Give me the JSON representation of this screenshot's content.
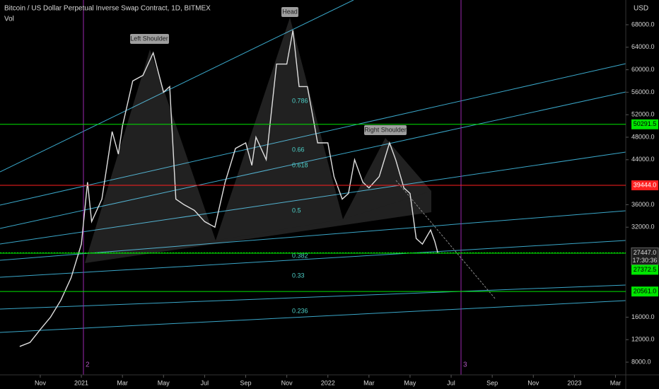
{
  "chart_data": {
    "type": "line",
    "title": "Bitcoin / US Dollar Perpetual Inverse Swap Contract, 1D, BITMEX",
    "subtitle": "Vol",
    "y_axis_label": "USD",
    "x": [
      9,
      9.5,
      10,
      10.5,
      11,
      11.5,
      12,
      12.3,
      12.5,
      13,
      13.5,
      13.8,
      14,
      14.5,
      15,
      15.5,
      16,
      16.3,
      16.6,
      17,
      17.5,
      18,
      18.5,
      19,
      19.5,
      20,
      20.3,
      20.5,
      21,
      21.5,
      22,
      22.3,
      22.6,
      23,
      23.5,
      24,
      24.3,
      24.7,
      25,
      25.3,
      25.7,
      26,
      26.5,
      27,
      27.3,
      27.7,
      28,
      28.3,
      28.6,
      29,
      29.2,
      29.35
    ],
    "values": [
      10800,
      11500,
      13800,
      16000,
      19000,
      23000,
      29000,
      40000,
      33000,
      37000,
      49000,
      45000,
      50000,
      58000,
      59000,
      63000,
      56000,
      57000,
      37000,
      36000,
      35000,
      33000,
      32000,
      40000,
      46000,
      47000,
      43000,
      48000,
      44000,
      61000,
      61000,
      67000,
      57000,
      57000,
      47000,
      47000,
      41000,
      37000,
      38000,
      44000,
      40000,
      39000,
      41000,
      47000,
      44000,
      39000,
      38000,
      30000,
      29000,
      31500,
      29500,
      27447
    ],
    "color": "#e0e0e0",
    "xlim": [
      8.04,
      38.5
    ],
    "xticks": [
      {
        "value": 10,
        "label": "Nov"
      },
      {
        "value": 12,
        "label": "2021"
      },
      {
        "value": 14,
        "label": "Mar"
      },
      {
        "value": 16,
        "label": "May"
      },
      {
        "value": 18,
        "label": "Jul"
      },
      {
        "value": 20,
        "label": "Sep"
      },
      {
        "value": 22,
        "label": "Nov"
      },
      {
        "value": 24,
        "label": "2022"
      },
      {
        "value": 26,
        "label": "Mar"
      },
      {
        "value": 28,
        "label": "May"
      },
      {
        "value": 30,
        "label": "Jul"
      },
      {
        "value": 32,
        "label": "Sep"
      },
      {
        "value": 34,
        "label": "Nov"
      },
      {
        "value": 36,
        "label": "2023"
      },
      {
        "value": 38,
        "label": "Mar"
      }
    ],
    "ylim": [
      5740,
      72400
    ],
    "yticks": [
      {
        "value": 68000,
        "label": "68000.0"
      },
      {
        "value": 64000,
        "label": "64000.0"
      },
      {
        "value": 60000,
        "label": "60000.0"
      },
      {
        "value": 56000,
        "label": "56000.0"
      },
      {
        "value": 52000,
        "label": "52000.0"
      },
      {
        "value": 48000,
        "label": "48000.0"
      },
      {
        "value": 44000,
        "label": "44000.0"
      },
      {
        "value": 36000,
        "label": "36000.0"
      },
      {
        "value": 32000,
        "label": "32000.0"
      },
      {
        "value": 16000,
        "label": "16000.0"
      },
      {
        "value": 12000,
        "label": "12000.0"
      },
      {
        "value": 8000,
        "label": "8000.0"
      }
    ],
    "price_lines": [
      {
        "value": 50291.5,
        "label": "50291.5",
        "color": "#00e600"
      },
      {
        "value": 39444,
        "label": "39444.0",
        "color": "#ff2020"
      },
      {
        "value": 27447,
        "label": "27447.0",
        "color": "#1e1e1e"
      },
      {
        "value": 27372.5,
        "label": "27372.5",
        "color": "#00e600"
      },
      {
        "value": 20561,
        "label": "20561.0",
        "color": "#00e600"
      }
    ],
    "countdown": "17:30:36",
    "annotations": [
      "Left Shoulder",
      "Head",
      "Right Shoulder"
    ],
    "fib_labels": [
      "0.786",
      "0.66",
      "0.618",
      "0.5",
      "0.382",
      "0.33",
      "0.236"
    ],
    "markers": [
      "2",
      "3"
    ]
  }
}
